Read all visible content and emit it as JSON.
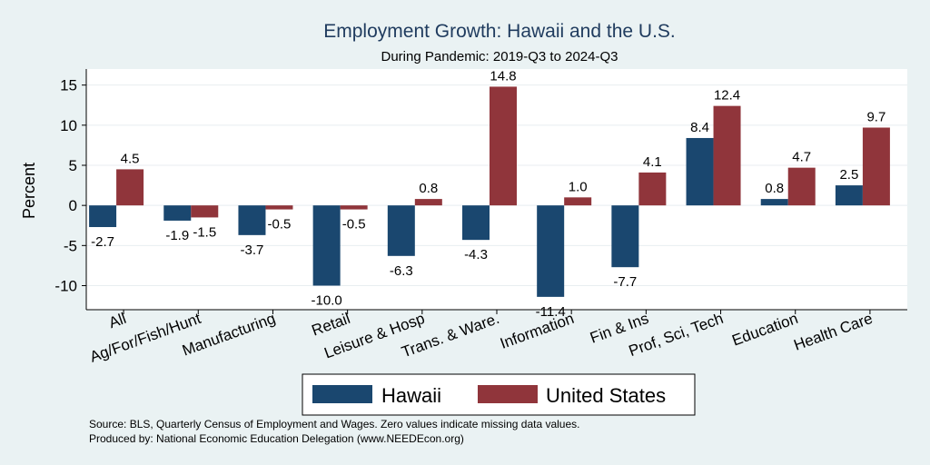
{
  "chart_data": {
    "type": "bar",
    "title": "Employment Growth: Hawaii and the U.S.",
    "subtitle": "During Pandemic: 2019-Q3 to 2024-Q3",
    "ylabel": "Percent",
    "xlabel": "",
    "ylim": [
      -13,
      17
    ],
    "yticks": [
      -10,
      -5,
      0,
      5,
      10,
      15
    ],
    "grid": true,
    "legend_position": "bottom",
    "categories": [
      "All",
      "Ag/For/Fish/Hunt",
      "Manufacturing",
      "Retail",
      "Leisure & Hosp",
      "Trans. & Ware.",
      "Information",
      "Fin & Ins",
      "Prof, Sci, Tech",
      "Education",
      "Health Care"
    ],
    "series": [
      {
        "name": "Hawaii",
        "color": "#1a476f",
        "values": [
          -2.7,
          -1.9,
          -3.7,
          -10.0,
          -6.3,
          -4.3,
          -11.4,
          -7.7,
          8.4,
          0.8,
          2.5
        ],
        "labels": [
          "-2.7",
          "-1.9",
          "-3.7",
          "-10.0",
          "-6.3",
          "-4.3",
          "-11.4",
          "-7.7",
          "8.4",
          "0.8",
          "2.5"
        ]
      },
      {
        "name": "United States",
        "color": "#90353b",
        "values": [
          4.5,
          -1.5,
          -0.5,
          -0.5,
          0.8,
          14.8,
          1.0,
          4.1,
          12.4,
          4.7,
          9.7
        ],
        "labels": [
          "4.5",
          "-1.5",
          "-0.5",
          "-0.5",
          "0.8",
          "14.8",
          "1.0",
          "4.1",
          "12.4",
          "4.7",
          "9.7"
        ]
      }
    ],
    "notes": [
      "Source: BLS, Quarterly Census of Employment and Wages. Zero values indicate missing data values.",
      "Produced by: National Economic Education Delegation (www.NEEDEcon.org)"
    ]
  }
}
